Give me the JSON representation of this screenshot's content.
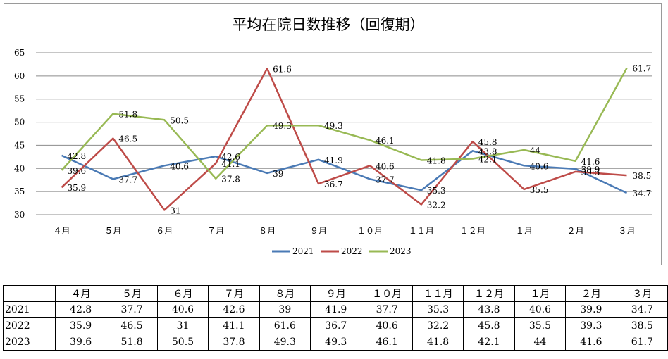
{
  "chart_data": {
    "type": "line",
    "title": "平均在院日数推移（回復期）",
    "categories": [
      "４月",
      "５月",
      "６月",
      "７月",
      "８月",
      "９月",
      "１０月",
      "１１月",
      "１２月",
      "１月",
      "２月",
      "３月"
    ],
    "series": [
      {
        "name": "2021",
        "color": "#4a7ab5",
        "values": [
          42.8,
          37.7,
          40.6,
          42.6,
          39,
          41.9,
          37.7,
          35.3,
          43.8,
          40.6,
          39.9,
          34.7
        ]
      },
      {
        "name": "2022",
        "color": "#be4b48",
        "values": [
          35.9,
          46.5,
          31,
          41.1,
          61.6,
          36.7,
          40.6,
          32.2,
          45.8,
          35.5,
          39.3,
          38.5
        ]
      },
      {
        "name": "2023",
        "color": "#98b954",
        "values": [
          39.6,
          51.8,
          50.5,
          37.8,
          49.3,
          49.3,
          46.1,
          41.8,
          42.1,
          44,
          41.6,
          61.7
        ]
      }
    ],
    "ylim": [
      30,
      65
    ],
    "yticks": [
      30,
      35,
      40,
      45,
      50,
      55,
      60,
      65
    ],
    "grid": true,
    "legend": "bottom"
  }
}
